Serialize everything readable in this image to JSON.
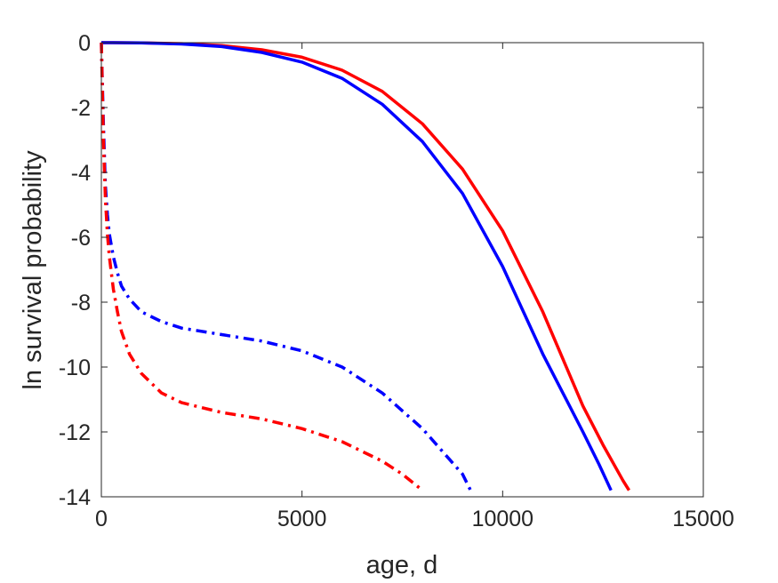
{
  "chart_data": {
    "type": "line",
    "xlabel": "age, d",
    "ylabel": "ln survival probability",
    "xlim": [
      0,
      15000
    ],
    "ylim": [
      -14,
      0
    ],
    "xticks": [
      0,
      5000,
      10000,
      15000
    ],
    "yticks": [
      -14,
      -12,
      -10,
      -8,
      -6,
      -4,
      -2,
      0
    ],
    "xtick_labels": [
      "0",
      "5000",
      "10000",
      "15000"
    ],
    "ytick_labels": [
      "-14",
      "-12",
      "-10",
      "-8",
      "-6",
      "-4",
      "-2",
      "0"
    ],
    "grid": false,
    "legend": "none",
    "series": [
      {
        "color": "#ff0000",
        "style": "solid",
        "x": [
          0,
          1000,
          2000,
          3000,
          4000,
          5000,
          6000,
          7000,
          8000,
          9000,
          10000,
          11000,
          12000,
          12500,
          13000,
          13150
        ],
        "y": [
          0,
          -0.005,
          -0.03,
          -0.09,
          -0.22,
          -0.45,
          -0.85,
          -1.5,
          -2.5,
          -3.9,
          -5.8,
          -8.3,
          -11.2,
          -12.4,
          -13.5,
          -13.8
        ]
      },
      {
        "color": "#0000ff",
        "style": "solid",
        "x": [
          0,
          1000,
          2000,
          3000,
          4000,
          5000,
          6000,
          7000,
          8000,
          9000,
          10000,
          11000,
          12000,
          12400,
          12700
        ],
        "y": [
          0,
          -0.005,
          -0.04,
          -0.12,
          -0.3,
          -0.6,
          -1.1,
          -1.9,
          -3.05,
          -4.65,
          -6.9,
          -9.6,
          -12.0,
          -13.0,
          -13.8
        ]
      },
      {
        "color": "#0000ff",
        "style": "dashdot",
        "x": [
          0,
          50,
          100,
          150,
          200,
          300,
          400,
          500,
          700,
          1000,
          1500,
          2000,
          3000,
          4000,
          5000,
          6000,
          7000,
          8000,
          8500,
          9000,
          9200
        ],
        "y": [
          0,
          -2.5,
          -4.4,
          -5.3,
          -5.9,
          -6.6,
          -7.1,
          -7.5,
          -7.9,
          -8.3,
          -8.6,
          -8.8,
          -9.0,
          -9.2,
          -9.5,
          -10.0,
          -10.8,
          -11.9,
          -12.6,
          -13.3,
          -13.8
        ]
      },
      {
        "color": "#ff0000",
        "style": "dashdot",
        "x": [
          0,
          50,
          100,
          150,
          200,
          300,
          400,
          500,
          700,
          1000,
          1500,
          2000,
          3000,
          4000,
          5000,
          6000,
          7000,
          7500,
          8000
        ],
        "y": [
          0,
          -3.0,
          -4.8,
          -5.9,
          -6.6,
          -7.6,
          -8.3,
          -8.9,
          -9.6,
          -10.2,
          -10.8,
          -11.1,
          -11.4,
          -11.6,
          -11.9,
          -12.3,
          -12.9,
          -13.3,
          -13.8
        ]
      }
    ]
  }
}
